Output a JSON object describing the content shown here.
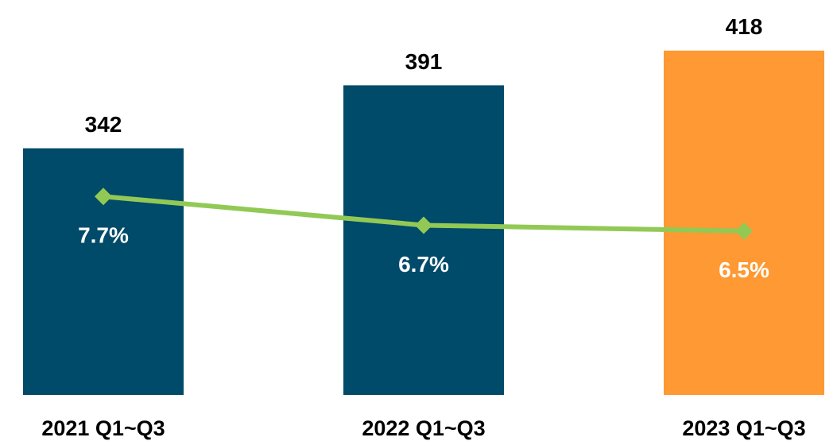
{
  "chart_data": {
    "type": "bar",
    "categories": [
      "2021 Q1~Q3",
      "2022 Q1~Q3",
      "2023 Q1~Q3"
    ],
    "ylim": [
      150,
      450
    ],
    "y2lim": [
      0.8,
      14.2
    ],
    "series": [
      {
        "type": "bar",
        "values": [
          342,
          391,
          418
        ],
        "colors": [
          "#004a6a",
          "#004a6a",
          "#ff9933"
        ]
      },
      {
        "type": "line",
        "axis": "y2",
        "color": "#92c955",
        "values": [
          7.7,
          6.7,
          6.5
        ],
        "value_labels": [
          "7.7%",
          "6.7%",
          "6.5%"
        ]
      }
    ]
  }
}
